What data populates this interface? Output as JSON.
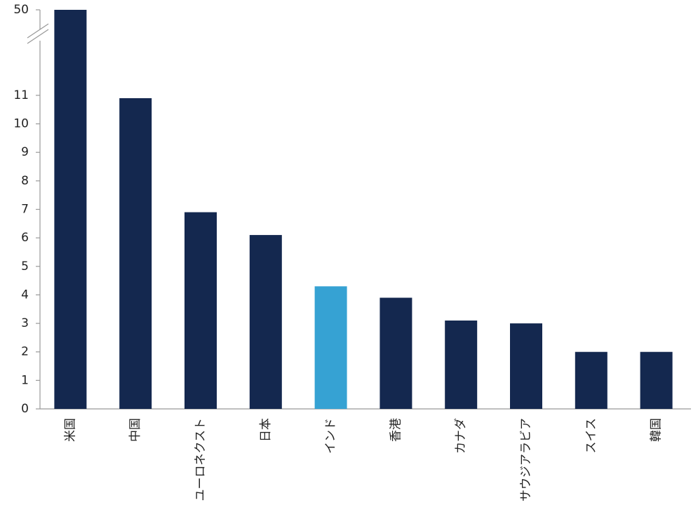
{
  "chart_data": {
    "type": "bar",
    "categories": [
      "米国",
      "中国",
      "ユーロネクスト",
      "日本",
      "インド",
      "香港",
      "カナダ",
      "サウジアラビア",
      "スイス",
      "韓国"
    ],
    "values": [
      50,
      10.9,
      6.9,
      6.1,
      4.3,
      3.9,
      3.1,
      3.0,
      2.0,
      2.0
    ],
    "colors": [
      "#14284f",
      "#14284f",
      "#14284f",
      "#14284f",
      "#36a2d3",
      "#14284f",
      "#14284f",
      "#14284f",
      "#14284f",
      "#14284f"
    ],
    "ylim": [
      0,
      50
    ],
    "yticks": [
      0,
      1,
      2,
      3,
      4,
      5,
      6,
      7,
      8,
      9,
      10,
      11,
      50
    ],
    "axis_break": true,
    "grid": false
  }
}
